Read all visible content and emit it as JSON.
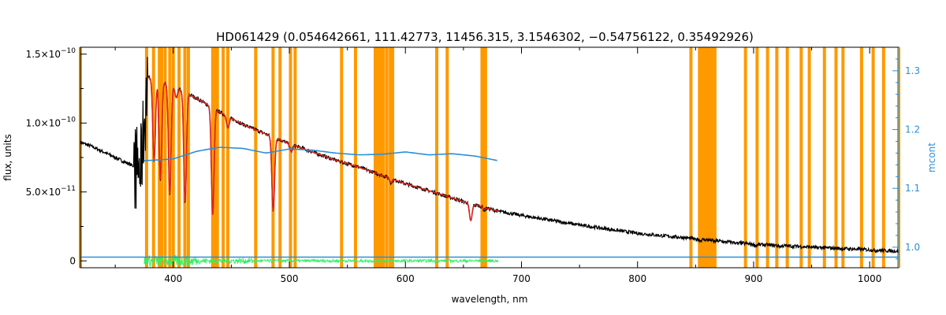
{
  "chart_data": {
    "type": "line",
    "title": "HD061429    (0.054642661, 111.42773, 11456.315, 3.1546302, −0.54756122, 0.35492926)",
    "xlabel": "wavelength, nm",
    "ylabel": "flux, units",
    "y2label": "mcont",
    "xlim": [
      320,
      1025
    ],
    "ylim": [
      -5e-12,
      1.55e-10
    ],
    "y2lim": [
      0.965,
      1.34
    ],
    "x_ticks": [
      "400",
      "500",
      "600",
      "700",
      "800",
      "900",
      "1000"
    ],
    "y_ticks": [
      {
        "mant": "0",
        "exp": ""
      },
      {
        "mant": "5.0×10",
        "exp": "−11"
      },
      {
        "mant": "1.0×10",
        "exp": "−10"
      },
      {
        "mant": "1.5×10",
        "exp": "−10"
      }
    ],
    "y2_ticks": [
      "1.0",
      "1.1",
      "1.2",
      "1.3"
    ],
    "colors": {
      "observed": "#000000",
      "model": "#e0231c",
      "mcont": "#2a8fd6",
      "residual": "#33ee66",
      "masks": "#ff9900"
    },
    "mask_lines": [
      377,
      383,
      388,
      390,
      393,
      397,
      400,
      405,
      410,
      413,
      434,
      436,
      438,
      443,
      447,
      471,
      486,
      492,
      501,
      505,
      545,
      557,
      574,
      576,
      578,
      579,
      581,
      584,
      587,
      589,
      627,
      636,
      666,
      668,
      669,
      846,
      893,
      903,
      912,
      920,
      929,
      941,
      948,
      961,
      971,
      977,
      993,
      1003,
      1012
    ],
    "mask_bands": [
      [
        852,
        868
      ]
    ],
    "mask_edges": [
      320,
      1025
    ],
    "continuum_points": [
      [
        320,
        8.6e-11
      ],
      [
        330,
        8.3e-11
      ],
      [
        340,
        7.9e-11
      ],
      [
        350,
        7.5e-11
      ],
      [
        360,
        7.1e-11
      ],
      [
        368,
        6.8e-11
      ],
      [
        372,
        6.6e-11
      ],
      [
        378,
        1.33e-10
      ],
      [
        385,
        1.32e-10
      ],
      [
        400,
        1.27e-10
      ],
      [
        420,
        1.18e-10
      ],
      [
        440,
        1.08e-10
      ],
      [
        460,
        9.9e-11
      ],
      [
        480,
        9.2e-11
      ],
      [
        500,
        8.5e-11
      ],
      [
        520,
        7.9e-11
      ],
      [
        540,
        7.3e-11
      ],
      [
        560,
        6.8e-11
      ],
      [
        580,
        6.2e-11
      ],
      [
        600,
        5.6e-11
      ],
      [
        620,
        5.1e-11
      ],
      [
        650,
        4.3e-11
      ],
      [
        680,
        3.6e-11
      ],
      [
        700,
        3.3e-11
      ],
      [
        750,
        2.6e-11
      ],
      [
        800,
        2e-11
      ],
      [
        850,
        1.6e-11
      ],
      [
        900,
        1.2e-11
      ],
      [
        950,
        1e-11
      ],
      [
        1000,
        8e-12
      ],
      [
        1025,
        7e-12
      ]
    ],
    "absorption_lines": [
      [
        383.5,
        0.45
      ],
      [
        388.9,
        0.55
      ],
      [
        397.0,
        0.62
      ],
      [
        410.2,
        0.66
      ],
      [
        434.0,
        0.7
      ],
      [
        486.1,
        0.6
      ],
      [
        656.3,
        0.3
      ],
      [
        587.6,
        0.05
      ],
      [
        447.1,
        0.08
      ],
      [
        402.6,
        0.06
      ],
      [
        501.6,
        0.06
      ],
      [
        667.8,
        0.04
      ],
      [
        849.8,
        0.05
      ],
      [
        854.2,
        0.06
      ],
      [
        866.2,
        0.06
      ],
      [
        875.0,
        0.05
      ],
      [
        886.3,
        0.06
      ],
      [
        901.5,
        0.07
      ],
      [
        922.9,
        0.06
      ],
      [
        954.6,
        0.05
      ],
      [
        1004.9,
        0.05
      ]
    ],
    "model_range": [
      378,
      680
    ],
    "mcont_range": [
      375,
      680
    ],
    "mcont_curve": [
      [
        375,
        1.147
      ],
      [
        400,
        1.15
      ],
      [
        420,
        1.163
      ],
      [
        440,
        1.17
      ],
      [
        460,
        1.168
      ],
      [
        480,
        1.16
      ],
      [
        500,
        1.167
      ],
      [
        520,
        1.165
      ],
      [
        540,
        1.16
      ],
      [
        560,
        1.157
      ],
      [
        580,
        1.158
      ],
      [
        600,
        1.162
      ],
      [
        620,
        1.157
      ],
      [
        640,
        1.159
      ],
      [
        660,
        1.155
      ],
      [
        680,
        1.147
      ]
    ],
    "mcont_baseline": 0.983,
    "residual_range": [
      375,
      680
    ],
    "residual_amp": 7e-12
  }
}
